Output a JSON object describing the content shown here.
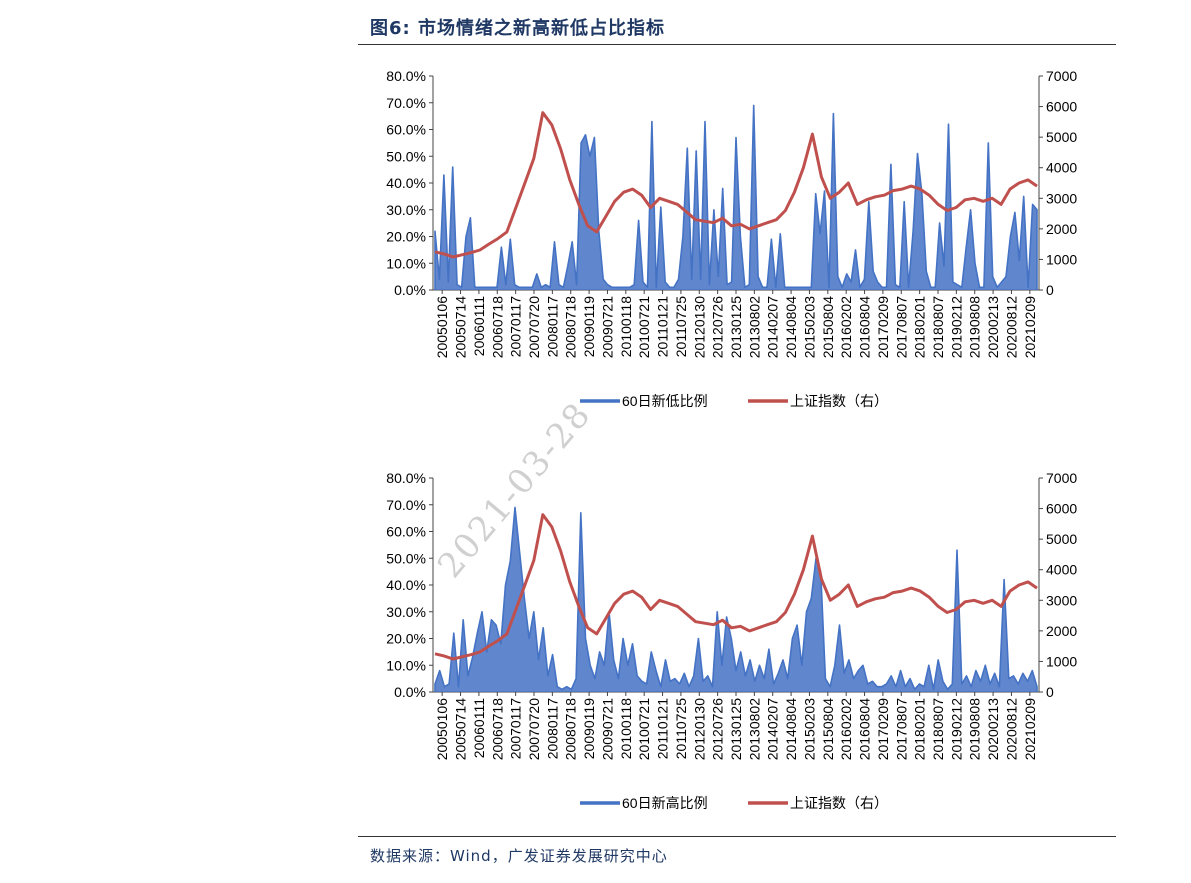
{
  "figure_title": "图6:  市场情绪之新高新低占比指标",
  "source_note": "数据来源：Wind，广发证券发展研究中心",
  "watermark": "2021-03-28",
  "colors": {
    "bar_series": "#4472c4",
    "index_series": "#c0504d",
    "title": "#1f3864"
  },
  "chart_data": [
    {
      "type": "line",
      "title": "",
      "x_ticks": [
        "20050106",
        "20050714",
        "20060111",
        "20060718",
        "20070117",
        "20070720",
        "20080117",
        "20080718",
        "20090119",
        "20090721",
        "20100118",
        "20100721",
        "20110121",
        "20110725",
        "20120130",
        "20120726",
        "20130125",
        "20130802",
        "20140207",
        "20140804",
        "20150203",
        "20150804",
        "20160202",
        "20160804",
        "20170209",
        "20170807",
        "20180201",
        "20180807",
        "20190212",
        "20190808",
        "20200213",
        "20200812",
        "20210209"
      ],
      "y_left_ticks": [
        "80.0%",
        "70.0%",
        "60.0%",
        "50.0%",
        "40.0%",
        "30.0%",
        "20.0%",
        "10.0%",
        "0.0%"
      ],
      "y_right_ticks": [
        "7000",
        "6000",
        "5000",
        "4000",
        "3000",
        "2000",
        "1000",
        "0"
      ],
      "ylim_left": [
        0,
        80
      ],
      "ylim_right": [
        0,
        7000
      ],
      "series": [
        {
          "name": "60日新低比例",
          "axis": "left",
          "values": [
            22,
            4,
            43,
            3,
            46,
            2,
            1,
            20,
            27,
            1,
            1,
            1,
            1,
            1,
            1,
            16,
            2,
            19,
            2,
            1,
            1,
            1,
            1,
            6,
            1,
            2,
            1,
            18,
            2,
            1,
            9,
            18,
            2,
            55,
            58,
            50,
            57,
            22,
            4,
            2,
            1,
            1,
            1,
            1,
            1,
            2,
            26,
            3,
            1,
            63,
            1,
            31,
            3,
            1,
            1,
            4,
            20,
            53,
            4,
            52,
            4,
            63,
            2,
            30,
            5,
            38,
            2,
            3,
            57,
            20,
            1,
            2,
            69,
            5,
            1,
            1,
            19,
            1,
            21,
            1,
            1,
            1,
            1,
            1,
            1,
            1,
            36,
            21,
            37,
            1,
            66,
            5,
            1,
            6,
            3,
            15,
            1,
            4,
            33,
            7,
            3,
            1,
            1,
            47,
            2,
            1,
            33,
            1,
            22,
            51,
            36,
            7,
            1,
            1,
            25,
            9,
            62,
            3,
            2,
            1,
            16,
            30,
            10,
            1,
            1,
            55,
            5,
            1,
            3,
            5,
            20,
            29,
            11,
            35,
            1,
            32,
            30
          ]
        },
        {
          "name": "上证指数（右）",
          "axis": "right",
          "values": [
            1250,
            1180,
            1080,
            1150,
            1220,
            1310,
            1500,
            1680,
            1900,
            2700,
            3500,
            4300,
            5800,
            5400,
            4600,
            3600,
            2800,
            2100,
            1900,
            2400,
            2900,
            3200,
            3300,
            3100,
            2700,
            3000,
            2900,
            2800,
            2550,
            2300,
            2250,
            2200,
            2350,
            2100,
            2150,
            2000,
            2100,
            2200,
            2300,
            2600,
            3200,
            4000,
            5100,
            3700,
            3000,
            3200,
            3500,
            2800,
            2950,
            3050,
            3100,
            3250,
            3300,
            3400,
            3300,
            3100,
            2800,
            2600,
            2700,
            2950,
            3000,
            2900,
            3000,
            2800,
            3300,
            3500,
            3600,
            3400
          ]
        }
      ]
    },
    {
      "type": "line",
      "title": "",
      "x_ticks": [
        "20050106",
        "20050714",
        "20060111",
        "20060718",
        "20070117",
        "20070720",
        "20080117",
        "20080718",
        "20090119",
        "20090721",
        "20100118",
        "20100721",
        "20110121",
        "20110725",
        "20120130",
        "20120726",
        "20130125",
        "20130802",
        "20140207",
        "20140804",
        "20150203",
        "20150804",
        "20160202",
        "20160804",
        "20170209",
        "20170807",
        "20180201",
        "20180807",
        "20190212",
        "20190808",
        "20200213",
        "20200812",
        "20210209"
      ],
      "y_left_ticks": [
        "80.0%",
        "70.0%",
        "60.0%",
        "50.0%",
        "40.0%",
        "30.0%",
        "20.0%",
        "10.0%",
        "0.0%"
      ],
      "y_right_ticks": [
        "7000",
        "6000",
        "5000",
        "4000",
        "3000",
        "2000",
        "1000",
        "0"
      ],
      "ylim_left": [
        0,
        80
      ],
      "ylim_right": [
        0,
        7000
      ],
      "series": [
        {
          "name": "60日新高比例",
          "axis": "left",
          "values": [
            3,
            8,
            2,
            3,
            22,
            2,
            27,
            6,
            13,
            22,
            30,
            15,
            27,
            25,
            18,
            40,
            49,
            69,
            52,
            35,
            20,
            30,
            12,
            24,
            6,
            14,
            2,
            1,
            2,
            1,
            5,
            67,
            20,
            10,
            5,
            15,
            10,
            30,
            12,
            5,
            20,
            10,
            18,
            6,
            4,
            3,
            15,
            8,
            2,
            12,
            4,
            5,
            3,
            7,
            2,
            6,
            20,
            4,
            6,
            2,
            30,
            10,
            28,
            20,
            8,
            15,
            6,
            12,
            4,
            10,
            5,
            16,
            3,
            7,
            12,
            5,
            20,
            25,
            10,
            30,
            35,
            50,
            45,
            5,
            2,
            10,
            25,
            7,
            12,
            5,
            8,
            10,
            3,
            4,
            2,
            2,
            3,
            6,
            2,
            8,
            2,
            5,
            1,
            3,
            2,
            10,
            1,
            12,
            4,
            1,
            3,
            53,
            3,
            6,
            2,
            8,
            4,
            10,
            3,
            7,
            2,
            42,
            5,
            6,
            3,
            7,
            4,
            8,
            2
          ]
        },
        {
          "name": "上证指数（右）",
          "axis": "right",
          "values": [
            1250,
            1180,
            1080,
            1150,
            1220,
            1310,
            1500,
            1680,
            1900,
            2700,
            3500,
            4300,
            5800,
            5400,
            4600,
            3600,
            2800,
            2100,
            1900,
            2400,
            2900,
            3200,
            3300,
            3100,
            2700,
            3000,
            2900,
            2800,
            2550,
            2300,
            2250,
            2200,
            2350,
            2100,
            2150,
            2000,
            2100,
            2200,
            2300,
            2600,
            3200,
            4000,
            5100,
            3700,
            3000,
            3200,
            3500,
            2800,
            2950,
            3050,
            3100,
            3250,
            3300,
            3400,
            3300,
            3100,
            2800,
            2600,
            2700,
            2950,
            3000,
            2900,
            3000,
            2800,
            3300,
            3500,
            3600,
            3400
          ]
        }
      ]
    }
  ]
}
